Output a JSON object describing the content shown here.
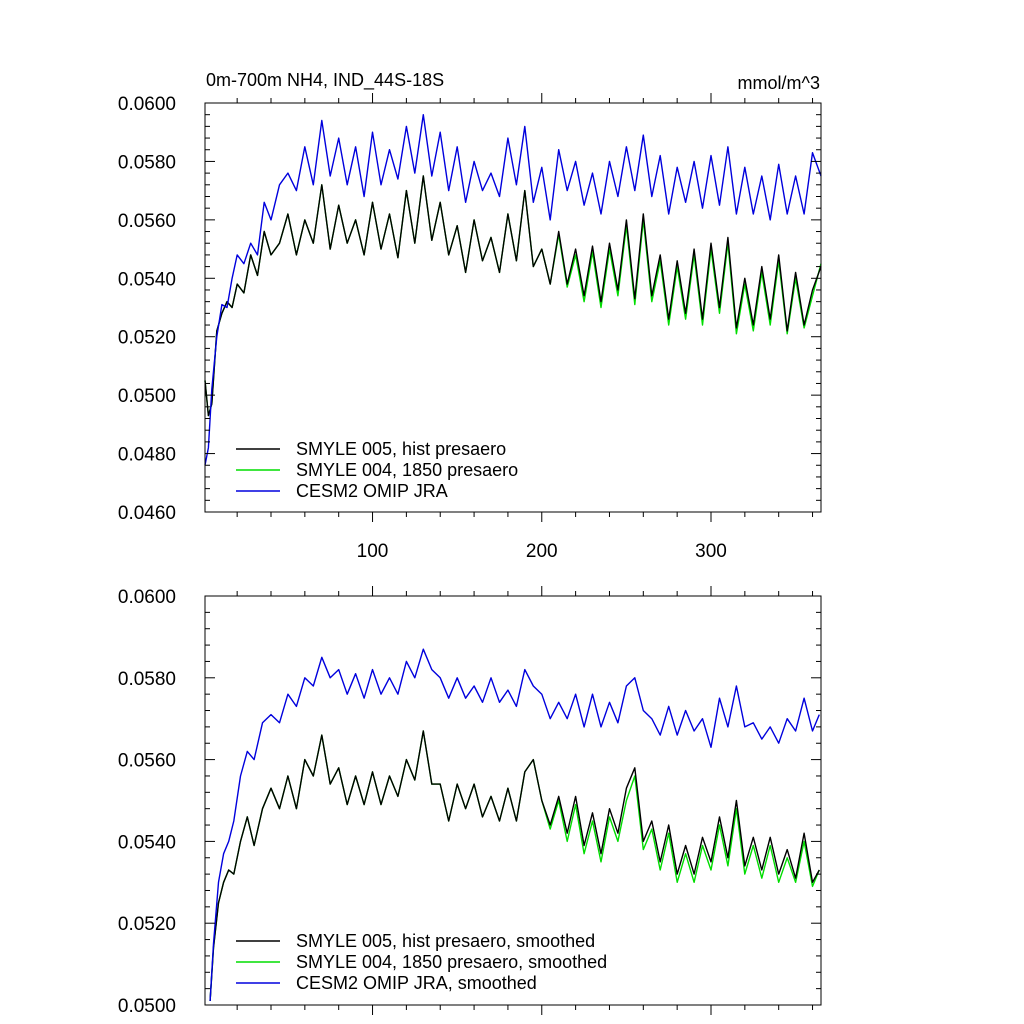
{
  "colors": {
    "hist": "#000000",
    "pre1850": "#00dd00",
    "omip": "#0000dd"
  },
  "chart_data": [
    {
      "type": "line",
      "title": "0m-700m NH4, IND_44S-18S",
      "units": "mmol/m^3",
      "xlabel": "",
      "ylabel": "",
      "xlim": [
        1,
        365
      ],
      "ylim": [
        0.046,
        0.06
      ],
      "x_ticks": [
        100,
        200,
        300
      ],
      "x_tick_labels": [
        "100",
        "200",
        "300"
      ],
      "y_ticks": [
        0.046,
        0.048,
        0.05,
        0.052,
        0.054,
        0.056,
        0.058,
        0.06
      ],
      "y_tick_labels": [
        "0.0460",
        "0.0480",
        "0.0500",
        "0.0520",
        "0.0540",
        "0.0560",
        "0.0580",
        "0.0600"
      ],
      "legend_position": "bottom-left",
      "series": [
        {
          "name": "SMYLE 005, hist presaero",
          "color_key": "hist",
          "x": [
            1,
            3,
            5,
            8,
            11,
            14,
            17,
            20,
            24,
            28,
            32,
            36,
            40,
            45,
            50,
            55,
            60,
            65,
            70,
            75,
            80,
            85,
            90,
            95,
            100,
            105,
            110,
            115,
            120,
            125,
            130,
            135,
            140,
            145,
            150,
            155,
            160,
            165,
            170,
            175,
            180,
            185,
            190,
            195,
            200,
            205,
            210,
            215,
            220,
            225,
            230,
            235,
            240,
            245,
            250,
            255,
            260,
            265,
            270,
            275,
            280,
            285,
            290,
            295,
            300,
            305,
            310,
            315,
            320,
            325,
            330,
            335,
            340,
            345,
            350,
            355,
            360,
            365
          ],
          "y": [
            0.0505,
            0.0493,
            0.0497,
            0.0522,
            0.0528,
            0.0532,
            0.053,
            0.0538,
            0.0535,
            0.0548,
            0.0541,
            0.0556,
            0.0548,
            0.0552,
            0.0562,
            0.0548,
            0.056,
            0.0552,
            0.0572,
            0.055,
            0.0565,
            0.0552,
            0.056,
            0.0548,
            0.0566,
            0.055,
            0.0562,
            0.0547,
            0.057,
            0.0552,
            0.0575,
            0.0553,
            0.0566,
            0.0548,
            0.0558,
            0.0542,
            0.056,
            0.0546,
            0.0554,
            0.0542,
            0.0562,
            0.0546,
            0.057,
            0.0544,
            0.055,
            0.0538,
            0.0556,
            0.0538,
            0.055,
            0.0534,
            0.0551,
            0.0532,
            0.0552,
            0.0536,
            0.056,
            0.0533,
            0.0562,
            0.0534,
            0.0548,
            0.0526,
            0.0546,
            0.0528,
            0.055,
            0.0526,
            0.0552,
            0.053,
            0.0554,
            0.0523,
            0.054,
            0.0524,
            0.0544,
            0.0526,
            0.0548,
            0.0522,
            0.0542,
            0.0524,
            0.0536,
            0.0544
          ]
        },
        {
          "name": "SMYLE 004, 1850 presaero",
          "color_key": "pre1850",
          "x": [
            1,
            3,
            5,
            8,
            11,
            14,
            17,
            20,
            24,
            28,
            32,
            36,
            40,
            45,
            50,
            55,
            60,
            65,
            70,
            75,
            80,
            85,
            90,
            95,
            100,
            105,
            110,
            115,
            120,
            125,
            130,
            135,
            140,
            145,
            150,
            155,
            160,
            165,
            170,
            175,
            180,
            185,
            190,
            195,
            200,
            205,
            210,
            215,
            220,
            225,
            230,
            235,
            240,
            245,
            250,
            255,
            260,
            265,
            270,
            275,
            280,
            285,
            290,
            295,
            300,
            305,
            310,
            315,
            320,
            325,
            330,
            335,
            340,
            345,
            350,
            355,
            360,
            365
          ],
          "y": [
            0.0505,
            0.0493,
            0.0497,
            0.0522,
            0.0528,
            0.0532,
            0.053,
            0.0538,
            0.0535,
            0.0548,
            0.0541,
            0.0556,
            0.0548,
            0.0552,
            0.0562,
            0.0548,
            0.056,
            0.0552,
            0.0572,
            0.055,
            0.0565,
            0.0552,
            0.056,
            0.0548,
            0.0566,
            0.055,
            0.0562,
            0.0547,
            0.057,
            0.0552,
            0.0575,
            0.0553,
            0.0566,
            0.0548,
            0.0558,
            0.0542,
            0.056,
            0.0546,
            0.0554,
            0.0542,
            0.0562,
            0.0546,
            0.057,
            0.0544,
            0.055,
            0.0538,
            0.0555,
            0.0537,
            0.0548,
            0.0532,
            0.0549,
            0.053,
            0.055,
            0.0534,
            0.0558,
            0.0531,
            0.056,
            0.0532,
            0.0546,
            0.0524,
            0.0544,
            0.0526,
            0.0548,
            0.0524,
            0.055,
            0.0528,
            0.0552,
            0.0521,
            0.0538,
            0.0522,
            0.0542,
            0.0524,
            0.0546,
            0.0521,
            0.054,
            0.0523,
            0.0534,
            0.0545
          ]
        },
        {
          "name": "CESM2 OMIP JRA",
          "color_key": "omip",
          "x": [
            1,
            3,
            5,
            8,
            11,
            14,
            17,
            20,
            24,
            28,
            32,
            36,
            40,
            45,
            50,
            55,
            60,
            65,
            70,
            75,
            80,
            85,
            90,
            95,
            100,
            105,
            110,
            115,
            120,
            125,
            130,
            135,
            140,
            145,
            150,
            155,
            160,
            165,
            170,
            175,
            180,
            185,
            190,
            195,
            200,
            205,
            210,
            215,
            220,
            225,
            230,
            235,
            240,
            245,
            250,
            255,
            260,
            265,
            270,
            275,
            280,
            285,
            290,
            295,
            300,
            305,
            310,
            315,
            320,
            325,
            330,
            335,
            340,
            345,
            350,
            355,
            360,
            365
          ],
          "y": [
            0.0476,
            0.0482,
            0.0502,
            0.052,
            0.0531,
            0.053,
            0.054,
            0.0548,
            0.0545,
            0.0552,
            0.0548,
            0.0566,
            0.056,
            0.0572,
            0.0576,
            0.057,
            0.0585,
            0.0572,
            0.0594,
            0.0575,
            0.0588,
            0.0572,
            0.0585,
            0.0568,
            0.059,
            0.0572,
            0.0584,
            0.0574,
            0.0592,
            0.0576,
            0.0596,
            0.0575,
            0.059,
            0.057,
            0.0585,
            0.0566,
            0.058,
            0.057,
            0.0576,
            0.0568,
            0.0588,
            0.0572,
            0.0592,
            0.0566,
            0.0578,
            0.056,
            0.0584,
            0.057,
            0.058,
            0.0565,
            0.0576,
            0.0562,
            0.058,
            0.0568,
            0.0585,
            0.057,
            0.0589,
            0.0568,
            0.0582,
            0.0562,
            0.0578,
            0.0566,
            0.058,
            0.0564,
            0.0582,
            0.0565,
            0.0585,
            0.0562,
            0.0578,
            0.0562,
            0.0575,
            0.056,
            0.0579,
            0.0562,
            0.0575,
            0.0562,
            0.0583,
            0.0575
          ]
        }
      ]
    },
    {
      "type": "line",
      "title": "",
      "xlabel": "",
      "ylabel": "",
      "xlim": [
        1,
        365
      ],
      "ylim": [
        0.05,
        0.06
      ],
      "x_ticks": [
        100,
        200,
        300
      ],
      "x_tick_labels": [],
      "y_ticks": [
        0.05,
        0.052,
        0.054,
        0.056,
        0.058,
        0.06
      ],
      "y_tick_labels": [
        "0.0500",
        "0.0520",
        "0.0540",
        "0.0560",
        "0.0580",
        "0.0600"
      ],
      "legend_position": "bottom-left",
      "series": [
        {
          "name": "SMYLE 005, hist presaero, smoothed",
          "color_key": "hist",
          "x": [
            4,
            6,
            9,
            12,
            15,
            18,
            22,
            26,
            30,
            35,
            40,
            45,
            50,
            55,
            60,
            65,
            70,
            75,
            80,
            85,
            90,
            95,
            100,
            105,
            110,
            115,
            120,
            125,
            130,
            135,
            140,
            145,
            150,
            155,
            160,
            165,
            170,
            175,
            180,
            185,
            190,
            195,
            200,
            205,
            210,
            215,
            220,
            225,
            230,
            235,
            240,
            245,
            250,
            255,
            260,
            265,
            270,
            275,
            280,
            285,
            290,
            295,
            300,
            305,
            310,
            315,
            320,
            325,
            330,
            335,
            340,
            345,
            350,
            355,
            360,
            364
          ],
          "y": [
            0.0501,
            0.0514,
            0.0525,
            0.053,
            0.0533,
            0.0532,
            0.054,
            0.0546,
            0.0539,
            0.0548,
            0.0553,
            0.0548,
            0.0556,
            0.0548,
            0.056,
            0.0556,
            0.0566,
            0.0554,
            0.0558,
            0.0549,
            0.0556,
            0.0549,
            0.0557,
            0.0549,
            0.0556,
            0.0551,
            0.056,
            0.0555,
            0.0567,
            0.0554,
            0.0554,
            0.0545,
            0.0554,
            0.0548,
            0.0554,
            0.0546,
            0.0551,
            0.0545,
            0.0553,
            0.0545,
            0.0557,
            0.056,
            0.055,
            0.0544,
            0.0551,
            0.0542,
            0.0551,
            0.0539,
            0.0547,
            0.0537,
            0.0548,
            0.0542,
            0.0553,
            0.0558,
            0.054,
            0.0545,
            0.0535,
            0.0544,
            0.0532,
            0.0539,
            0.0532,
            0.0541,
            0.0535,
            0.0546,
            0.0536,
            0.055,
            0.0534,
            0.0541,
            0.0533,
            0.0541,
            0.0532,
            0.0538,
            0.0531,
            0.0542,
            0.053,
            0.0533
          ]
        },
        {
          "name": "SMYLE 004, 1850 presaero, smoothed",
          "color_key": "pre1850",
          "x": [
            4,
            6,
            9,
            12,
            15,
            18,
            22,
            26,
            30,
            35,
            40,
            45,
            50,
            55,
            60,
            65,
            70,
            75,
            80,
            85,
            90,
            95,
            100,
            105,
            110,
            115,
            120,
            125,
            130,
            135,
            140,
            145,
            150,
            155,
            160,
            165,
            170,
            175,
            180,
            185,
            190,
            195,
            200,
            205,
            210,
            215,
            220,
            225,
            230,
            235,
            240,
            245,
            250,
            255,
            260,
            265,
            270,
            275,
            280,
            285,
            290,
            295,
            300,
            305,
            310,
            315,
            320,
            325,
            330,
            335,
            340,
            345,
            350,
            355,
            360,
            364
          ],
          "y": [
            0.0501,
            0.0514,
            0.0525,
            0.053,
            0.0533,
            0.0532,
            0.054,
            0.0546,
            0.0539,
            0.0548,
            0.0553,
            0.0548,
            0.0556,
            0.0548,
            0.056,
            0.0556,
            0.0566,
            0.0554,
            0.0558,
            0.0549,
            0.0556,
            0.0549,
            0.0557,
            0.0549,
            0.0556,
            0.0551,
            0.056,
            0.0555,
            0.0567,
            0.0554,
            0.0554,
            0.0545,
            0.0554,
            0.0548,
            0.0554,
            0.0546,
            0.0551,
            0.0545,
            0.0553,
            0.0545,
            0.0557,
            0.056,
            0.055,
            0.0543,
            0.055,
            0.054,
            0.0549,
            0.0537,
            0.0545,
            0.0535,
            0.0546,
            0.054,
            0.055,
            0.0556,
            0.0538,
            0.0543,
            0.0533,
            0.0542,
            0.053,
            0.0537,
            0.053,
            0.0539,
            0.0533,
            0.0544,
            0.0534,
            0.0548,
            0.0532,
            0.0539,
            0.0531,
            0.0539,
            0.053,
            0.0536,
            0.053,
            0.054,
            0.0529,
            0.0533
          ]
        },
        {
          "name": "CESM2 OMIP JRA, smoothed",
          "color_key": "omip",
          "x": [
            4,
            6,
            9,
            12,
            15,
            18,
            22,
            26,
            30,
            35,
            40,
            45,
            50,
            55,
            60,
            65,
            70,
            75,
            80,
            85,
            90,
            95,
            100,
            105,
            110,
            115,
            120,
            125,
            130,
            135,
            140,
            145,
            150,
            155,
            160,
            165,
            170,
            175,
            180,
            185,
            190,
            195,
            200,
            205,
            210,
            215,
            220,
            225,
            230,
            235,
            240,
            245,
            250,
            255,
            260,
            265,
            270,
            275,
            280,
            285,
            290,
            295,
            300,
            305,
            310,
            315,
            320,
            325,
            330,
            335,
            340,
            345,
            350,
            355,
            360,
            364
          ],
          "y": [
            0.0501,
            0.0515,
            0.053,
            0.0537,
            0.054,
            0.0545,
            0.0556,
            0.0562,
            0.056,
            0.0569,
            0.0571,
            0.0569,
            0.0576,
            0.0573,
            0.058,
            0.0578,
            0.0585,
            0.058,
            0.0582,
            0.0576,
            0.0581,
            0.0575,
            0.0582,
            0.0576,
            0.058,
            0.0576,
            0.0584,
            0.058,
            0.0587,
            0.0582,
            0.058,
            0.0575,
            0.058,
            0.0575,
            0.0578,
            0.0574,
            0.058,
            0.0574,
            0.0577,
            0.0573,
            0.0582,
            0.0578,
            0.0576,
            0.057,
            0.0574,
            0.057,
            0.0576,
            0.0568,
            0.0576,
            0.0568,
            0.0574,
            0.0569,
            0.0578,
            0.058,
            0.0572,
            0.057,
            0.0566,
            0.0573,
            0.0566,
            0.0572,
            0.0567,
            0.057,
            0.0563,
            0.0575,
            0.0568,
            0.0578,
            0.0568,
            0.0569,
            0.0565,
            0.0568,
            0.0564,
            0.057,
            0.0567,
            0.0575,
            0.0567,
            0.0571
          ]
        }
      ]
    }
  ]
}
